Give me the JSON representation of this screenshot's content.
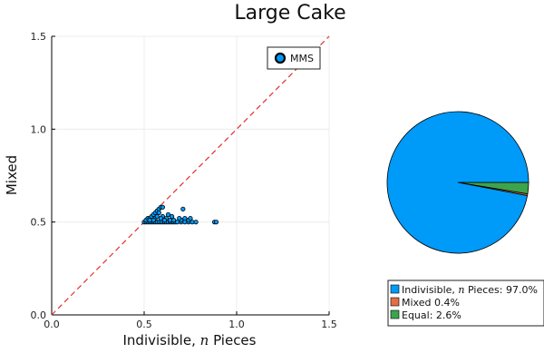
{
  "chart_data": [
    {
      "type": "scatter",
      "title": "Large Cake",
      "xlabel_main": "Indivisible,",
      "xlabel_var": "n",
      "xlabel_tail": "Pieces",
      "ylabel": "Mixed",
      "xlim": [
        0.0,
        1.5
      ],
      "ylim": [
        0.0,
        1.5
      ],
      "xticks": [
        "0.0",
        "0.5",
        "1.0",
        "1.5"
      ],
      "yticks": [
        "0.0",
        "0.5",
        "1.0",
        "1.5"
      ],
      "grid": true,
      "legend_position": "top-right",
      "reference_line": {
        "style": "dashed",
        "color": "#e03030",
        "from": [
          0.0,
          0.0
        ],
        "to": [
          1.5,
          1.5
        ]
      },
      "series": [
        {
          "name": "MMS",
          "color": "#009af9",
          "points": [
            [
              0.5,
              0.5
            ],
            [
              0.51,
              0.5
            ],
            [
              0.52,
              0.5
            ],
            [
              0.53,
              0.5
            ],
            [
              0.54,
              0.5
            ],
            [
              0.55,
              0.5
            ],
            [
              0.56,
              0.5
            ],
            [
              0.57,
              0.5
            ],
            [
              0.58,
              0.5
            ],
            [
              0.59,
              0.5
            ],
            [
              0.6,
              0.5
            ],
            [
              0.61,
              0.5
            ],
            [
              0.62,
              0.5
            ],
            [
              0.63,
              0.5
            ],
            [
              0.64,
              0.5
            ],
            [
              0.65,
              0.5
            ],
            [
              0.66,
              0.5
            ],
            [
              0.67,
              0.5
            ],
            [
              0.68,
              0.5
            ],
            [
              0.7,
              0.5
            ],
            [
              0.72,
              0.5
            ],
            [
              0.74,
              0.5
            ],
            [
              0.76,
              0.5
            ],
            [
              0.78,
              0.5
            ],
            [
              0.88,
              0.5
            ],
            [
              0.89,
              0.5
            ],
            [
              0.51,
              0.51
            ],
            [
              0.52,
              0.52
            ],
            [
              0.53,
              0.52
            ],
            [
              0.54,
              0.53
            ],
            [
              0.55,
              0.54
            ],
            [
              0.56,
              0.55
            ],
            [
              0.57,
              0.56
            ],
            [
              0.58,
              0.57
            ],
            [
              0.59,
              0.58
            ],
            [
              0.6,
              0.58
            ],
            [
              0.58,
              0.55
            ],
            [
              0.6,
              0.53
            ],
            [
              0.62,
              0.52
            ],
            [
              0.56,
              0.52
            ],
            [
              0.64,
              0.51
            ],
            [
              0.66,
              0.51
            ],
            [
              0.7,
              0.51
            ],
            [
              0.72,
              0.52
            ],
            [
              0.74,
              0.51
            ],
            [
              0.61,
              0.51
            ],
            [
              0.63,
              0.54
            ],
            [
              0.57,
              0.53
            ],
            [
              0.55,
              0.51
            ],
            [
              0.53,
              0.51
            ],
            [
              0.71,
              0.57
            ],
            [
              0.69,
              0.52
            ],
            [
              0.75,
              0.52
            ],
            [
              0.65,
              0.53
            ],
            [
              0.59,
              0.52
            ]
          ]
        }
      ]
    },
    {
      "type": "pie",
      "slices": [
        {
          "label_main": "Indivisible,",
          "label_var": "n",
          "label_tail": "Pieces: 97.0%",
          "value": 97.0,
          "color": "#009af9"
        },
        {
          "label_main": "Mixed 0.4%",
          "label_var": "",
          "label_tail": "",
          "value": 0.4,
          "color": "#e26f46"
        },
        {
          "label_main": "Equal: 2.6%",
          "label_var": "",
          "label_tail": "",
          "value": 2.6,
          "color": "#3da44d"
        }
      ],
      "legend_position": "bottom"
    }
  ]
}
